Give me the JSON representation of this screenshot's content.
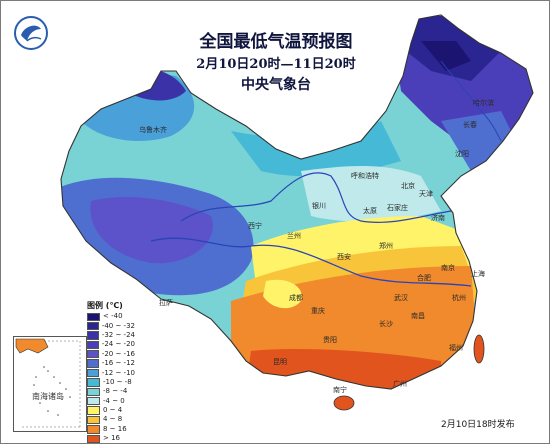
{
  "header": {
    "title": "全国最低气温预报图",
    "period": "2月10日20时—11日20时",
    "agency": "中央气象台"
  },
  "legend": {
    "title": "图例 (℃)",
    "items": [
      {
        "label": "< -40",
        "color": "#1b1470"
      },
      {
        "label": "-40 ~ -32",
        "color": "#2a2590"
      },
      {
        "label": "-32 ~ -24",
        "color": "#3a32a6"
      },
      {
        "label": "-24 ~ -20",
        "color": "#4a3fb8"
      },
      {
        "label": "-20 ~ -16",
        "color": "#5c52c9"
      },
      {
        "label": "-16 ~ -12",
        "color": "#4f6fd0"
      },
      {
        "label": "-12 ~ -10",
        "color": "#4aa0d8"
      },
      {
        "label": "-10 ~ -8",
        "color": "#45b9d6"
      },
      {
        "label": "-8 ~ -4",
        "color": "#79d2d4"
      },
      {
        "label": "-4 ~ 0",
        "color": "#bfe9ea"
      },
      {
        "label": "0 ~ 4",
        "color": "#fff36a"
      },
      {
        "label": "4 ~ 8",
        "color": "#f8c53a"
      },
      {
        "label": "8 ~ 16",
        "color": "#f08a2c"
      },
      {
        "label": "> 16",
        "color": "#e2541e"
      }
    ]
  },
  "inset": {
    "label": "南海诸岛"
  },
  "issued": "2月10日18时发布",
  "cities": [
    {
      "name": "乌鲁木齐"
    },
    {
      "name": "哈尔滨"
    },
    {
      "name": "长春"
    },
    {
      "name": "沈阳"
    },
    {
      "name": "呼和浩特"
    },
    {
      "name": "北京"
    },
    {
      "name": "天津"
    },
    {
      "name": "银川"
    },
    {
      "name": "太原"
    },
    {
      "name": "石家庄"
    },
    {
      "name": "济南"
    },
    {
      "name": "西宁"
    },
    {
      "name": "兰州"
    },
    {
      "name": "郑州"
    },
    {
      "name": "西安"
    },
    {
      "name": "拉萨"
    },
    {
      "name": "成都"
    },
    {
      "name": "重庆"
    },
    {
      "name": "合肥"
    },
    {
      "name": "南京"
    },
    {
      "name": "上海"
    },
    {
      "name": "武汉"
    },
    {
      "name": "杭州"
    },
    {
      "name": "长沙"
    },
    {
      "name": "南昌"
    },
    {
      "name": "贵阳"
    },
    {
      "name": "昆明"
    },
    {
      "name": "福州"
    },
    {
      "name": "南宁"
    },
    {
      "name": "广州"
    }
  ]
}
